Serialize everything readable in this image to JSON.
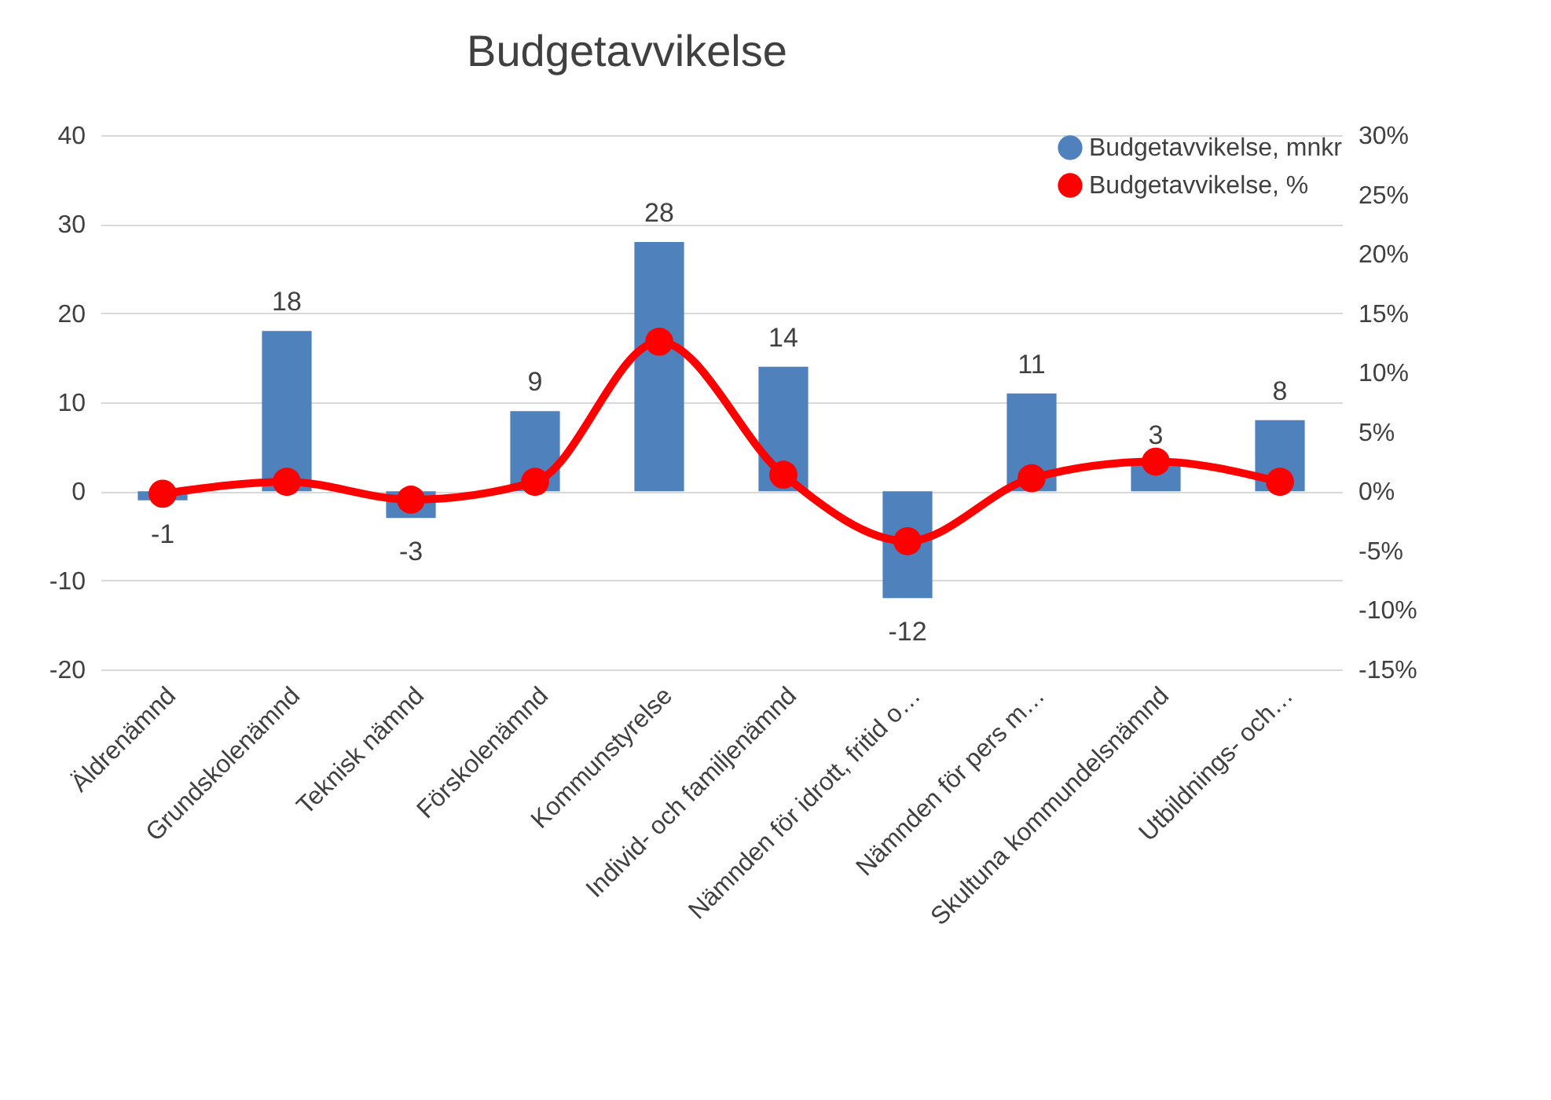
{
  "chart_data": {
    "type": "bar",
    "title": "Budgetavvikelse",
    "categories": [
      "Äldrenämnd",
      "Grundskolenämnd",
      "Teknisk nämnd",
      "Förskolenämnd",
      "Kommunstyrelse",
      "Individ- och familjenämnd",
      "Nämnden för idrott, fritid o…",
      "Nämnden för pers m…",
      "Skultuna kommundelsnämnd",
      "Utbildnings- och…"
    ],
    "series": [
      {
        "name": "Budgetavvikelse, mnkr",
        "color": "#4f81bd",
        "values": [
          -1,
          18,
          -3,
          9,
          28,
          14,
          -12,
          11,
          3,
          8
        ],
        "value_labels": [
          "-1",
          "18",
          "-3",
          "9",
          "28",
          "14",
          "-12",
          "11",
          "3",
          "8"
        ]
      },
      {
        "name": "Budgetavvikelse, %",
        "type": "line",
        "axis": "y2",
        "color": "#ff0000",
        "values": [
          -0.2,
          0.8,
          -0.7,
          0.8,
          12.6,
          1.4,
          -4.2,
          1.1,
          2.5,
          0.8
        ]
      }
    ],
    "ylim": [
      -20,
      40
    ],
    "yticks": [
      -20,
      -10,
      0,
      10,
      20,
      30,
      40
    ],
    "y2lim": [
      -15,
      30
    ],
    "y2ticks": [
      {
        "value": -15,
        "label": "-15%"
      },
      {
        "value": -10,
        "label": "-10%"
      },
      {
        "value": -5,
        "label": "-5%"
      },
      {
        "value": 0,
        "label": "0%"
      },
      {
        "value": 5,
        "label": "5%"
      },
      {
        "value": 10,
        "label": "10%"
      },
      {
        "value": 15,
        "label": "15%"
      },
      {
        "value": 20,
        "label": "20%"
      },
      {
        "value": 25,
        "label": "25%"
      },
      {
        "value": 30,
        "label": "30%"
      }
    ],
    "grid": "y",
    "legend": "top right",
    "marker": "circle",
    "line_style": "solid"
  }
}
